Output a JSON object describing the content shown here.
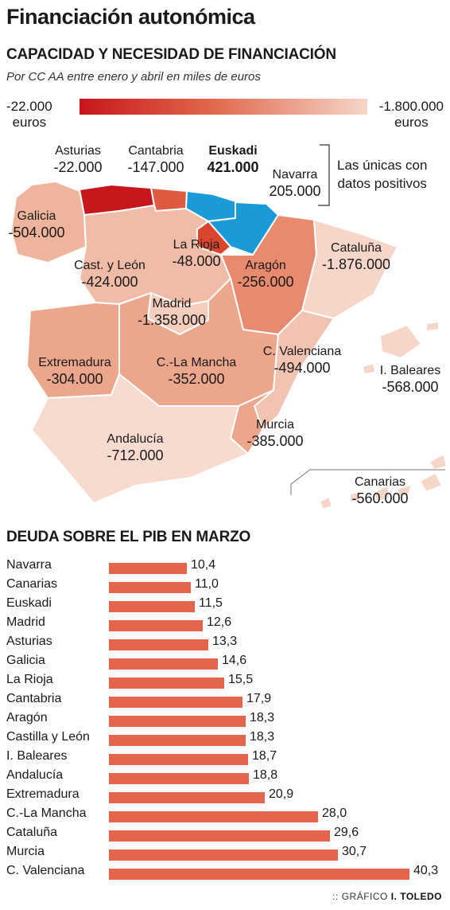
{
  "title": "Financiación autonómica",
  "map_section": {
    "heading": "CAPACIDAD Y NECESIDAD DE FINANCIACIÓN",
    "subtitle": "Por CC AA entre enero y abril en miles de euros",
    "legend_left": "-22.000",
    "legend_right": "-1.800.000",
    "legend_unit": "euros",
    "note_line1": "Las únicas con",
    "note_line2": "datos positivos",
    "colors": {
      "dark": "#c8161d",
      "mid": "#e88a6e",
      "light": "#f6d4c6",
      "positive": "#1a9bd7",
      "border": "#ffffff"
    },
    "regions": [
      {
        "name": "Asturias",
        "value": "-22.000"
      },
      {
        "name": "Cantabria",
        "value": "-147.000"
      },
      {
        "name": "Euskadi",
        "value": "421.000"
      },
      {
        "name": "Navarra",
        "value": "205.000"
      },
      {
        "name": "Galicia",
        "value": "-504.000"
      },
      {
        "name": "La Rioja",
        "value": "-48.000"
      },
      {
        "name": "Cast. y León",
        "value": "-424.000"
      },
      {
        "name": "Aragón",
        "value": "-256.000"
      },
      {
        "name": "Cataluña",
        "value": "-1.876.000"
      },
      {
        "name": "Madrid",
        "value": "-1.358.000"
      },
      {
        "name": "Extremadura",
        "value": "-304.000"
      },
      {
        "name": "C.-La Mancha",
        "value": "-352.000"
      },
      {
        "name": "C. Valenciana",
        "value": "-494.000"
      },
      {
        "name": "I. Baleares",
        "value": "-568.000"
      },
      {
        "name": "Murcia",
        "value": "-385.000"
      },
      {
        "name": "Andalucía",
        "value": "-712.000"
      },
      {
        "name": "Canarias",
        "value": "-560.000"
      }
    ]
  },
  "chart_data": {
    "type": "bar",
    "title": "DEUDA SOBRE EL PIB EN MARZO",
    "orientation": "horizontal",
    "categories": [
      "Navarra",
      "Canarias",
      "Euskadi",
      "Madrid",
      "Asturias",
      "Galicia",
      "La Rioja",
      "Cantabria",
      "Aragón",
      "Castilla y León",
      "I. Baleares",
      "Andalucía",
      "Extremadura",
      "C.-La Mancha",
      "Cataluña",
      "Murcia",
      "C. Valenciana"
    ],
    "values": [
      10.4,
      11.0,
      11.5,
      12.6,
      13.3,
      14.6,
      15.5,
      17.9,
      18.3,
      18.3,
      18.7,
      18.8,
      20.9,
      28.0,
      29.6,
      30.7,
      40.3
    ],
    "labels": [
      "10,4",
      "11,0",
      "11,5",
      "12,6",
      "13,3",
      "14,6",
      "15,5",
      "17,9",
      "18,3",
      "18,3",
      "18,7",
      "18,8",
      "20,9",
      "28,0",
      "29,6",
      "30,7",
      "40,3"
    ],
    "bar_color": "#e3644a",
    "xlim": [
      0,
      40.3
    ]
  },
  "credit": {
    "prefix": "GRÁFICO",
    "author": "I. TOLEDO"
  }
}
